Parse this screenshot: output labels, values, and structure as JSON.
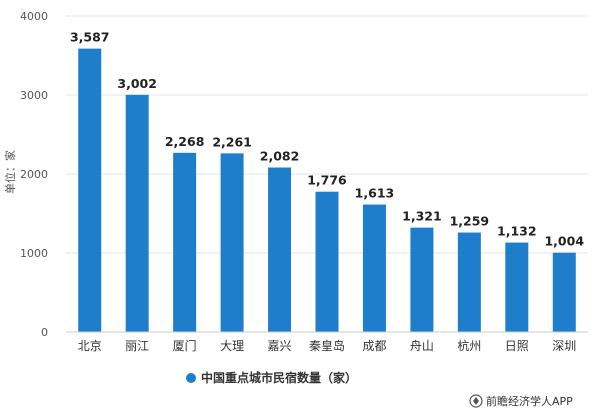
{
  "chart_data": {
    "type": "bar",
    "title": "",
    "xlabel": "",
    "ylabel": "单位：家",
    "ylim": [
      0,
      4000
    ],
    "yticks": [
      0,
      1000,
      2000,
      3000,
      4000
    ],
    "grid": true,
    "legend_position": "bottom",
    "categories": [
      "北京",
      "丽江",
      "厦门",
      "大理",
      "嘉兴",
      "秦皇岛",
      "成都",
      "舟山",
      "杭州",
      "日照",
      "深圳"
    ],
    "series": [
      {
        "name": "中国重点城市民宿数量（家）",
        "values": [
          3587,
          3002,
          2268,
          2261,
          2082,
          1776,
          1613,
          1321,
          1259,
          1132,
          1004
        ],
        "labels": [
          "3,587",
          "3,002",
          "2,268",
          "2,261",
          "2,082",
          "1,776",
          "1,613",
          "1,321",
          "1,259",
          "1,132",
          "1,004"
        ]
      }
    ],
    "colors": {
      "bar": "#1f7ecb",
      "grid": "#e4e4e4",
      "axis": "#cccccc"
    }
  },
  "credit": {
    "text": "前瞻经济学人APP",
    "icon": "logo-icon"
  }
}
